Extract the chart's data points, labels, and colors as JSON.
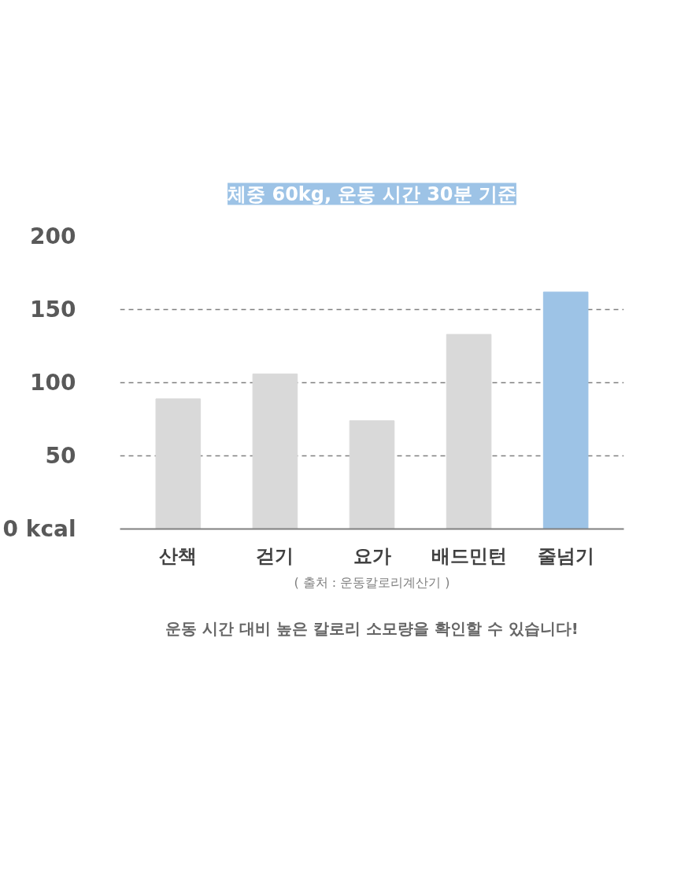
{
  "chart_data": {
    "type": "bar",
    "title": "체중 60kg, 운동 시간 30분 기준",
    "categories": [
      "산책",
      "걷기",
      "요가",
      "배드민턴",
      "줄넘기"
    ],
    "values": [
      89,
      106,
      74,
      133,
      162
    ],
    "colors": [
      "#d9d9d9",
      "#d9d9d9",
      "#d9d9d9",
      "#d9d9d9",
      "#9dc3e6"
    ],
    "ylim": [
      0,
      200
    ],
    "yticks": [
      {
        "value": 0,
        "label": "0 kcal"
      },
      50,
      100,
      150,
      200
    ],
    "grid": "y",
    "annotations": [
      "( 출처 : 운동칼로리계산기 )",
      "운동 시간 대비 높은 칼로리 소모량을 확인할 수 있습니다!"
    ]
  }
}
